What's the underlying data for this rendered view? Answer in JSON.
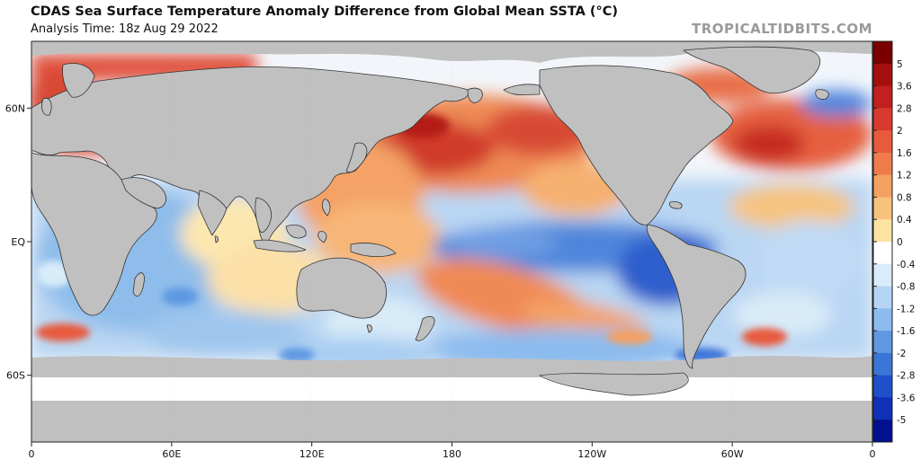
{
  "title": "CDAS Sea Surface Temperature Anomaly Difference from Global Mean SSTA (°C)",
  "subtitle": "Analysis Time: 18z Aug 29 2022",
  "watermark": "TROPICALTIDBITS.COM",
  "map": {
    "projection": "equirectangular",
    "lon_range": [
      0,
      360
    ],
    "lat_range": [
      -90,
      90
    ],
    "x_ticks": [
      {
        "lon": 0,
        "label": "0"
      },
      {
        "lon": 60,
        "label": "60E"
      },
      {
        "lon": 120,
        "label": "120E"
      },
      {
        "lon": 180,
        "label": "180"
      },
      {
        "lon": 240,
        "label": "120W"
      },
      {
        "lon": 300,
        "label": "60W"
      },
      {
        "lon": 360,
        "label": "0"
      }
    ],
    "y_ticks": [
      {
        "lat": 60,
        "label": "60N"
      },
      {
        "lat": 0,
        "label": "EQ"
      },
      {
        "lat": -60,
        "label": "60S"
      }
    ],
    "colors": {
      "land": "#c0c0c0",
      "ice": "#ffffff",
      "ocean_neutral": "#fdfdfd",
      "coast": "#333333"
    }
  },
  "colorbar": {
    "labels": [
      "5",
      "3.6",
      "2.8",
      "2",
      "1.6",
      "1.2",
      "0.8",
      "0.4",
      "0",
      "-0.4",
      "-0.8",
      "-1.2",
      "-1.6",
      "-2",
      "-2.8",
      "-3.6",
      "-5"
    ],
    "colors": [
      "#7a0000",
      "#a50f0f",
      "#c41f1f",
      "#d83a2e",
      "#e85a3c",
      "#ef7b4c",
      "#f4a060",
      "#f8c27c",
      "#fce3a0",
      "#ffffff",
      "#d8ecfa",
      "#b5d5f4",
      "#8cbbee",
      "#5f98e2",
      "#3c75d8",
      "#1f50cc",
      "#0f30b8",
      "#00108f"
    ]
  }
}
